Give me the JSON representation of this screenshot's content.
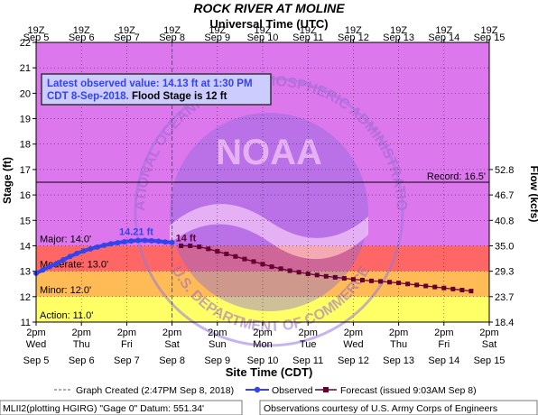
{
  "chart_data": {
    "type": "line",
    "title": "ROCK RIVER AT MOLINE",
    "top_axis_title": "Universal Time (UTC)",
    "bottom_axis_title": "Site Time (CDT)",
    "ylabel": "Stage (ft)",
    "y2label": "Flow (kcfs)",
    "ylim": [
      11,
      22
    ],
    "y_ticks": [
      "11",
      "12",
      "13",
      "14",
      "15",
      "16",
      "17",
      "18",
      "19",
      "20",
      "21",
      "22"
    ],
    "flow_ticks": [
      {
        "stage": 11,
        "label": "18.4"
      },
      {
        "stage": 12,
        "label": "23.7"
      },
      {
        "stage": 13,
        "label": "29.3"
      },
      {
        "stage": 14,
        "label": "35.0"
      },
      {
        "stage": 15,
        "label": "40.8"
      },
      {
        "stage": 16,
        "label": "46.7"
      },
      {
        "stage": 17,
        "label": "52.8"
      }
    ],
    "x_days": [
      "Sep 5",
      "Sep 6",
      "Sep 7",
      "Sep 8",
      "Sep 9",
      "Sep 10",
      "Sep 11",
      "Sep 12",
      "Sep 13",
      "Sep 14",
      "Sep 15"
    ],
    "x_weekdays": [
      "Wed",
      "Thu",
      "Fri",
      "Sat",
      "Sun",
      "Mon",
      "Tue",
      "Wed",
      "Thu",
      "Fri",
      "Sat"
    ],
    "top_hour_label": "19Z",
    "bottom_hour_label": "2pm",
    "bands": [
      {
        "name": "Action",
        "label": "Action: 11.0'",
        "from": 11,
        "to": 12,
        "color": "#ffff66"
      },
      {
        "name": "Minor",
        "label": "Minor: 12.0'",
        "from": 12,
        "to": 13,
        "color": "#ffbb55"
      },
      {
        "name": "Moderate",
        "label": "Moderate: 13.0'",
        "from": 13,
        "to": 14,
        "color": "#ff6666"
      },
      {
        "name": "Major",
        "label": "Major: 14.0'",
        "from": 14,
        "to": 22,
        "color": "#dd77ee"
      }
    ],
    "record": {
      "value": 16.5,
      "label": "Record: 16.5'"
    },
    "info_box": {
      "line1": "Latest observed value: 14.13 ft at 1:30 PM",
      "line2a": "CDT 8-Sep-2018.",
      "line2b": " Flood Stage is 12 ft"
    },
    "crest_label": "14.21 ft",
    "forecast_start_label": "14 ft",
    "graph_created_day": 3.0,
    "series": [
      {
        "name": "Observed",
        "color": "#3344ee",
        "points": [
          [
            0.0,
            12.92
          ],
          [
            0.15,
            13.05
          ],
          [
            0.3,
            13.18
          ],
          [
            0.45,
            13.3
          ],
          [
            0.6,
            13.45
          ],
          [
            0.75,
            13.58
          ],
          [
            0.9,
            13.7
          ],
          [
            1.05,
            13.8
          ],
          [
            1.2,
            13.88
          ],
          [
            1.35,
            13.95
          ],
          [
            1.5,
            14.02
          ],
          [
            1.65,
            14.08
          ],
          [
            1.8,
            14.12
          ],
          [
            1.95,
            14.16
          ],
          [
            2.1,
            14.19
          ],
          [
            2.25,
            14.21
          ],
          [
            2.4,
            14.21
          ],
          [
            2.55,
            14.2
          ],
          [
            2.7,
            14.18
          ],
          [
            2.85,
            14.15
          ],
          [
            3.0,
            14.13
          ]
        ]
      },
      {
        "name": "Forecast (issued 9:03AM Sep 8)",
        "color": "#660033",
        "points": [
          [
            3.2,
            14.0
          ],
          [
            3.4,
            14.0
          ],
          [
            3.6,
            13.96
          ],
          [
            3.8,
            13.88
          ],
          [
            4.0,
            13.78
          ],
          [
            4.2,
            13.68
          ],
          [
            4.4,
            13.58
          ],
          [
            4.6,
            13.48
          ],
          [
            4.8,
            13.38
          ],
          [
            5.0,
            13.28
          ],
          [
            5.2,
            13.18
          ],
          [
            5.4,
            13.1
          ],
          [
            5.6,
            13.02
          ],
          [
            5.8,
            12.96
          ],
          [
            6.0,
            12.9
          ],
          [
            6.2,
            12.85
          ],
          [
            6.4,
            12.8
          ],
          [
            6.6,
            12.76
          ],
          [
            6.8,
            12.72
          ],
          [
            7.0,
            12.68
          ],
          [
            7.2,
            12.65
          ],
          [
            7.4,
            12.62
          ],
          [
            7.6,
            12.6
          ],
          [
            7.8,
            12.57
          ],
          [
            8.0,
            12.54
          ],
          [
            8.2,
            12.5
          ],
          [
            8.4,
            12.46
          ],
          [
            8.6,
            12.42
          ],
          [
            8.8,
            12.38
          ],
          [
            9.0,
            12.34
          ],
          [
            9.2,
            12.3
          ],
          [
            9.4,
            12.26
          ],
          [
            9.6,
            12.22
          ]
        ]
      }
    ],
    "legend": {
      "graph_created": "Graph Created (2:47PM Sep 8, 2018)",
      "observed": "Observed",
      "forecast": "Forecast (issued 9:03AM Sep 8)"
    },
    "watermark": {
      "text_top": "NATIONAL OCEANIC AND ATMOSPHERIC ADMINISTRATION",
      "text_bottom": "U.S. DEPARTMENT OF COMMERCE",
      "logo": "NOAA"
    }
  },
  "footer": {
    "left": "MLII2(plotting HGIRG) \"Gage 0\" Datum: 551.34'",
    "right": "Observations courtesy of U.S. Army Corps of Engineers"
  }
}
